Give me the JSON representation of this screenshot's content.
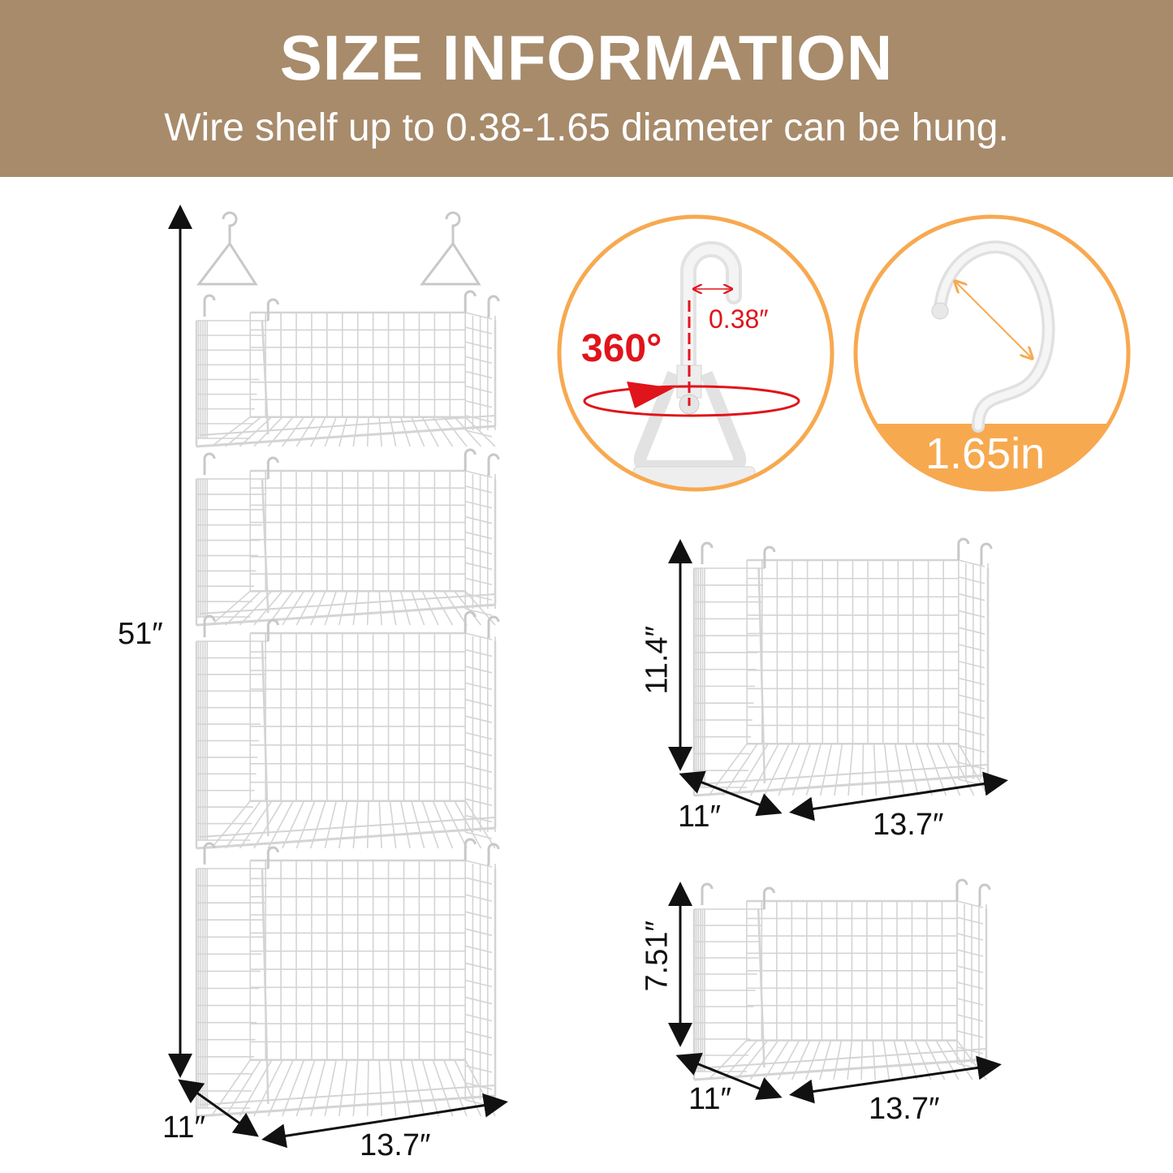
{
  "header": {
    "title": "SIZE INFORMATION",
    "subtitle": "Wire shelf up to 0.38-1.65 diameter can be hung."
  },
  "colors": {
    "header_bg": "#A78B6B",
    "accent_orange": "#F7A950",
    "accent_red": "#E0141B",
    "wire": "#D4D4D4"
  },
  "tower": {
    "height": "51″",
    "depth": "11″",
    "width": "13.7″"
  },
  "hook_detail": {
    "rotation": "360°",
    "gap": "0.38″"
  },
  "hook_diameter": {
    "value": "1.65in"
  },
  "basket_large": {
    "height": "11.4″",
    "depth": "11″",
    "width": "13.7″"
  },
  "basket_small": {
    "height": "7.51″",
    "depth": "11″",
    "width": "13.7″"
  }
}
